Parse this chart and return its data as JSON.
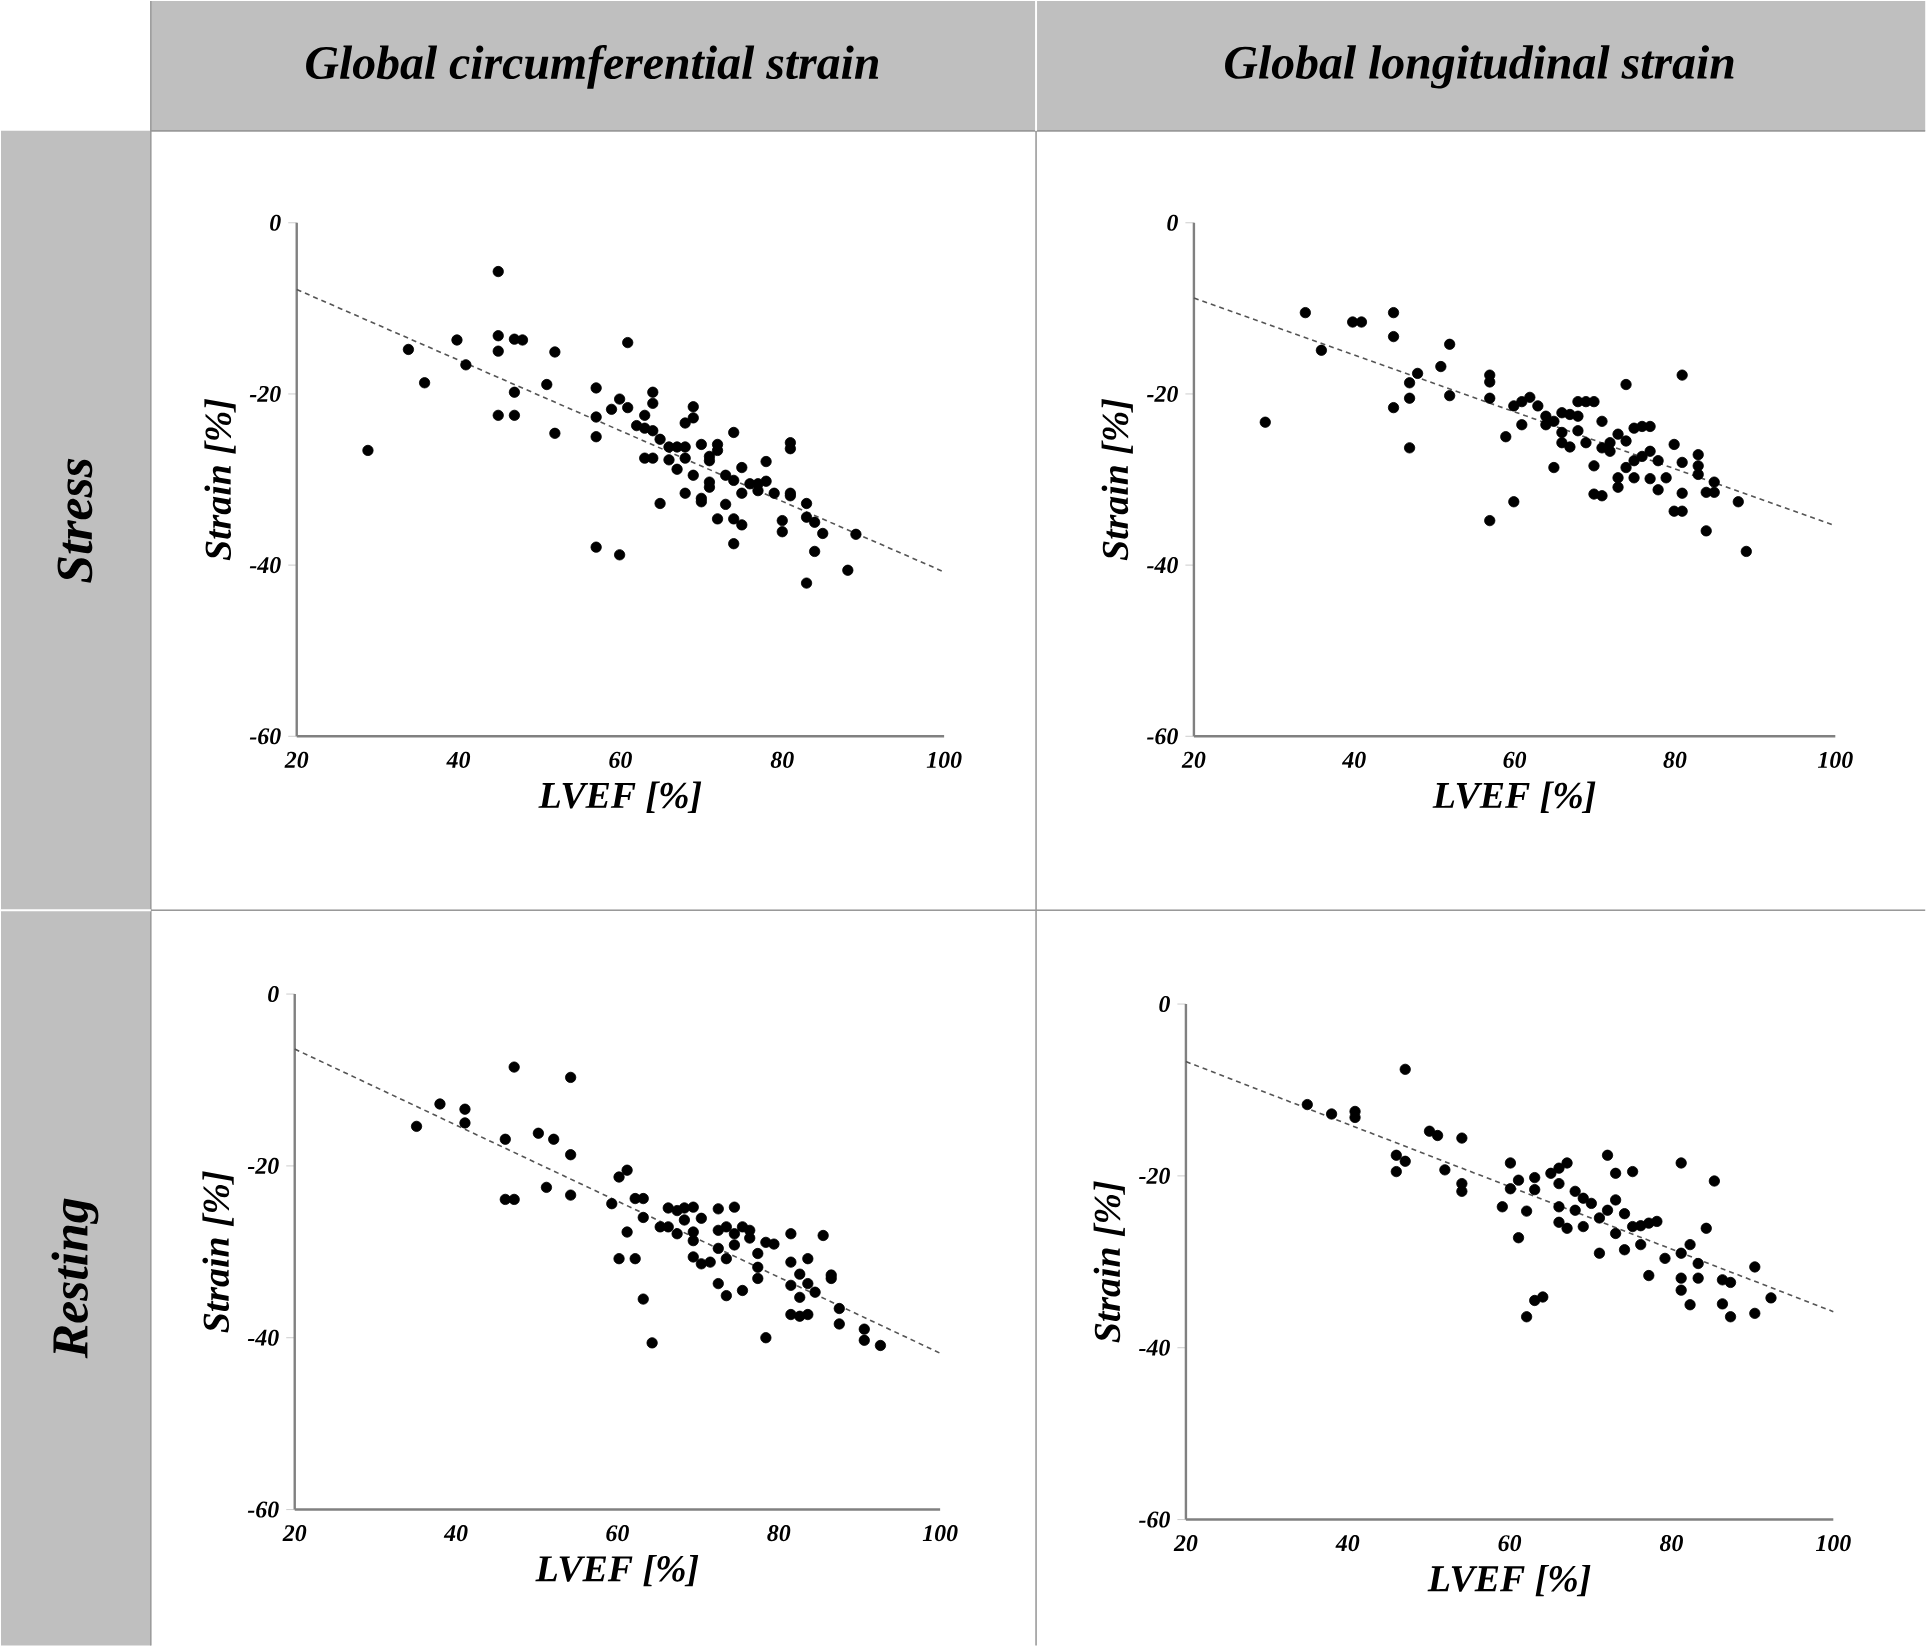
{
  "chart_data": [
    {
      "type": "scatter",
      "title": "Global circumferential strain",
      "annotations": [
        "Stress"
      ],
      "xlabel": "LVEF [%]",
      "ylabel": "Strain [%]",
      "xlim": [
        20,
        100
      ],
      "ylim": [
        -60,
        0
      ],
      "xticks": [
        20,
        40,
        60,
        80,
        100
      ],
      "yticks": [
        -60,
        -40,
        -20,
        0
      ],
      "series": [
        {
          "color": "#000000",
          "marker": "circle",
          "x": [
            28.8,
            33.8,
            35.8,
            39.8,
            40.9,
            44.9,
            44.9,
            44.9,
            44.9,
            46.9,
            47.9,
            46.9,
            46.9,
            50.9,
            51.9,
            51.9,
            57.0,
            57.0,
            57.0,
            57.0,
            59.9,
            59.9,
            58.9,
            60.9,
            60.9,
            62.0,
            63.0,
            64.0,
            64.0,
            63.0,
            64.0,
            64.9,
            63.0,
            64.0,
            64.9,
            66.0,
            67.0,
            68.0,
            66.0,
            67.0,
            68.0,
            68.0,
            69.0,
            69.0,
            69.0,
            68.0,
            70.0,
            70.0,
            70.0,
            71.0,
            71.0,
            72.0,
            72.0,
            71.0,
            71.0,
            72.0,
            73.0,
            73.0,
            74.0,
            74.0,
            74.0,
            74.0,
            75.0,
            75.0,
            75.0,
            76.0,
            77.0,
            77.0,
            78.0,
            78.0,
            79.0,
            81.0,
            81.0,
            81.0,
            81.0,
            80.0,
            80.0,
            83.0,
            83.0,
            83.0,
            84.0,
            84.0,
            85.0,
            88.1,
            89.1
          ],
          "values": [
            -26.6,
            -14.8,
            -18.7,
            -13.7,
            -16.6,
            -5.7,
            -13.2,
            -15.0,
            -22.5,
            -13.6,
            -13.7,
            -19.8,
            -22.5,
            -18.9,
            -15.1,
            -24.6,
            -19.3,
            -22.7,
            -25.0,
            -37.9,
            -20.6,
            -38.8,
            -21.8,
            -14.0,
            -21.6,
            -23.7,
            -22.5,
            -19.8,
            -21.1,
            -24.0,
            -24.3,
            -25.3,
            -27.5,
            -27.5,
            -32.8,
            -26.2,
            -26.2,
            -26.2,
            -27.7,
            -28.8,
            -27.5,
            -23.4,
            -22.8,
            -21.5,
            -29.5,
            -31.6,
            -25.9,
            -32.2,
            -32.6,
            -27.3,
            -27.8,
            -25.9,
            -26.6,
            -30.3,
            -30.9,
            -34.6,
            -29.5,
            -32.9,
            -24.5,
            -30.1,
            -34.6,
            -37.5,
            -28.6,
            -31.6,
            -35.3,
            -30.5,
            -30.5,
            -31.3,
            -27.9,
            -30.2,
            -31.6,
            -25.7,
            -26.4,
            -31.6,
            -31.9,
            -34.8,
            -36.1,
            -32.8,
            -34.4,
            -42.1,
            -35.0,
            -38.4,
            -36.3,
            -40.6,
            -36.4
          ]
        },
        {
          "type": "line",
          "line_style": "dashed",
          "color": "#555555",
          "x": [
            20,
            100
          ],
          "values": [
            -7.8,
            -40.8
          ],
          "marker": "none"
        }
      ]
    },
    {
      "type": "scatter",
      "title": "Global longitudinal strain",
      "xlabel": "LVEF [%]",
      "ylabel": "Strain [%]",
      "xlim": [
        20,
        100
      ],
      "ylim": [
        -60,
        0
      ],
      "xticks": [
        20,
        40,
        60,
        80,
        100
      ],
      "yticks": [
        -60,
        -40,
        -20,
        0
      ],
      "series": [
        {
          "color": "#000000",
          "marker": "circle",
          "x": [
            28.9,
            33.9,
            35.9,
            39.8,
            40.9,
            44.9,
            44.9,
            44.9,
            46.9,
            46.9,
            46.9,
            47.9,
            50.8,
            51.9,
            51.9,
            56.9,
            56.9,
            56.9,
            56.9,
            58.9,
            59.9,
            59.9,
            60.9,
            60.9,
            61.9,
            62.9,
            63.9,
            63.9,
            64.9,
            64.9,
            65.9,
            65.9,
            65.9,
            66.9,
            66.9,
            67.9,
            67.9,
            67.9,
            68.9,
            68.9,
            69.9,
            69.9,
            69.9,
            70.9,
            70.9,
            70.9,
            71.9,
            71.9,
            72.9,
            72.9,
            72.9,
            73.9,
            73.9,
            73.9,
            74.9,
            74.9,
            74.9,
            75.9,
            75.9,
            76.9,
            76.9,
            76.9,
            77.9,
            77.9,
            78.9,
            79.9,
            79.9,
            80.9,
            80.9,
            80.9,
            80.9,
            82.9,
            82.9,
            82.9,
            83.9,
            83.9,
            84.9,
            84.9,
            87.9,
            88.9
          ],
          "values": [
            -23.3,
            -10.5,
            -14.9,
            -11.6,
            -11.6,
            -10.5,
            -13.3,
            -21.6,
            -18.7,
            -20.5,
            -26.3,
            -17.6,
            -16.8,
            -14.2,
            -20.2,
            -17.8,
            -18.6,
            -20.5,
            -34.8,
            -25.0,
            -21.4,
            -32.6,
            -23.6,
            -20.9,
            -20.4,
            -21.4,
            -22.6,
            -23.6,
            -23.2,
            -28.6,
            -22.2,
            -24.5,
            -25.7,
            -22.4,
            -26.2,
            -20.9,
            -22.6,
            -24.3,
            -20.9,
            -25.7,
            -20.9,
            -28.4,
            -31.7,
            -23.2,
            -26.3,
            -31.9,
            -26.7,
            -25.7,
            -24.7,
            -29.8,
            -30.9,
            -18.9,
            -25.5,
            -28.6,
            -24.0,
            -27.8,
            -29.8,
            -23.8,
            -27.3,
            -23.8,
            -26.7,
            -29.9,
            -27.8,
            -31.2,
            -29.8,
            -25.9,
            -33.7,
            -17.8,
            -28.0,
            -31.6,
            -33.7,
            -27.1,
            -28.4,
            -29.4,
            -31.5,
            -36.0,
            -30.3,
            -31.5,
            -32.6,
            -38.4
          ]
        },
        {
          "type": "line",
          "line_style": "dashed",
          "color": "#555555",
          "x": [
            20,
            100
          ],
          "values": [
            -8.8,
            -35.4
          ],
          "marker": "none"
        }
      ]
    },
    {
      "type": "scatter",
      "annotations": [
        "Resting"
      ],
      "xlabel": "LVEF [%]",
      "ylabel": "Strain [%]",
      "xlim": [
        20,
        100
      ],
      "ylim": [
        -60,
        0
      ],
      "xticks": [
        20,
        40,
        60,
        80,
        100
      ],
      "yticks": [
        -60,
        -40,
        -20,
        0
      ],
      "series": [
        {
          "color": "#000000",
          "marker": "circle",
          "x": [
            35.1,
            38.0,
            41.1,
            41.1,
            46.1,
            46.1,
            47.2,
            47.2,
            50.2,
            51.2,
            52.1,
            54.2,
            54.2,
            54.2,
            59.3,
            60.2,
            61.2,
            60.2,
            61.2,
            62.2,
            62.2,
            63.2,
            63.2,
            63.2,
            64.3,
            65.3,
            66.3,
            66.3,
            67.4,
            67.4,
            68.3,
            68.3,
            69.4,
            69.4,
            69.4,
            69.4,
            70.4,
            70.4,
            71.5,
            72.5,
            72.5,
            72.5,
            72.5,
            73.5,
            73.5,
            73.5,
            74.5,
            74.5,
            74.5,
            75.5,
            75.5,
            76.4,
            76.4,
            77.4,
            77.4,
            77.4,
            78.4,
            78.4,
            79.4,
            81.5,
            81.5,
            81.5,
            81.5,
            82.6,
            82.6,
            82.6,
            83.6,
            83.6,
            83.6,
            84.5,
            85.5,
            86.5,
            86.5,
            87.5,
            87.5,
            90.6,
            90.6,
            92.6
          ],
          "values": [
            -15.4,
            -12.8,
            -13.4,
            -15.0,
            -16.9,
            -23.9,
            -23.9,
            -8.5,
            -16.2,
            -22.5,
            -16.9,
            -9.7,
            -18.7,
            -23.4,
            -24.4,
            -21.3,
            -20.5,
            -30.8,
            -27.7,
            -23.8,
            -30.8,
            -23.8,
            -26.0,
            -35.5,
            -40.6,
            -27.1,
            -24.9,
            -27.1,
            -25.2,
            -27.9,
            -24.9,
            -26.3,
            -24.8,
            -27.7,
            -28.7,
            -30.6,
            -26.1,
            -31.4,
            -31.2,
            -25.0,
            -27.5,
            -29.6,
            -33.7,
            -27.1,
            -30.8,
            -35.1,
            -24.8,
            -27.9,
            -29.2,
            -27.1,
            -34.5,
            -27.5,
            -28.4,
            -30.2,
            -31.8,
            -33.1,
            -28.9,
            -40.0,
            -29.1,
            -27.9,
            -31.2,
            -33.9,
            -37.3,
            -32.6,
            -35.3,
            -37.5,
            -30.8,
            -33.7,
            -37.3,
            -34.7,
            -28.1,
            -32.7,
            -33.1,
            -36.6,
            -38.4,
            -39.0,
            -40.3,
            -40.9
          ]
        },
        {
          "type": "line",
          "line_style": "dashed",
          "color": "#555555",
          "x": [
            20,
            100
          ],
          "values": [
            -6.4,
            -41.8
          ],
          "marker": "none"
        }
      ]
    },
    {
      "type": "scatter",
      "xlabel": "LVEF [%]",
      "ylabel": "Strain [%]",
      "xlim": [
        20,
        100
      ],
      "ylim": [
        -60,
        0
      ],
      "xticks": [
        20,
        40,
        60,
        80,
        100
      ],
      "yticks": [
        -60,
        -40,
        -20,
        0
      ],
      "series": [
        {
          "color": "#000000",
          "marker": "circle",
          "x": [
            35.0,
            38.0,
            40.9,
            40.9,
            47.1,
            46.0,
            46.0,
            47.1,
            50.1,
            51.1,
            52.0,
            54.1,
            54.1,
            54.1,
            59.1,
            60.1,
            60.1,
            61.1,
            61.1,
            62.1,
            62.1,
            63.1,
            63.1,
            63.1,
            64.1,
            65.1,
            66.1,
            66.1,
            66.1,
            66.1,
            67.1,
            67.1,
            68.1,
            68.1,
            69.1,
            69.1,
            70.1,
            71.1,
            71.1,
            72.1,
            72.1,
            73.1,
            73.1,
            73.1,
            74.2,
            74.2,
            75.2,
            75.2,
            76.2,
            76.2,
            77.2,
            77.2,
            78.2,
            79.2,
            81.2,
            81.2,
            81.2,
            81.2,
            82.3,
            82.3,
            83.3,
            83.3,
            84.3,
            85.3,
            86.3,
            86.3,
            87.3,
            87.3,
            90.3,
            90.3,
            92.3
          ],
          "values": [
            -11.7,
            -12.8,
            -12.5,
            -13.2,
            -7.6,
            -17.6,
            -19.5,
            -18.3,
            -14.8,
            -15.3,
            -19.3,
            -15.6,
            -20.9,
            -21.8,
            -23.6,
            -18.5,
            -21.5,
            -20.5,
            -27.2,
            -24.1,
            -36.4,
            -20.2,
            -21.6,
            -34.5,
            -34.1,
            -19.7,
            -19.1,
            -20.9,
            -23.6,
            -25.4,
            -18.5,
            -26.1,
            -21.8,
            -24.0,
            -22.6,
            -25.9,
            -23.2,
            -24.9,
            -29.0,
            -17.6,
            -24.0,
            -19.7,
            -22.8,
            -26.7,
            -24.4,
            -28.6,
            -19.5,
            -25.9,
            -28.0,
            -25.8,
            -25.5,
            -31.6,
            -25.3,
            -29.6,
            -18.5,
            -29.0,
            -31.9,
            -33.3,
            -28.0,
            -35.0,
            -30.2,
            -31.9,
            -26.1,
            -20.6,
            -32.1,
            -34.9,
            -32.4,
            -36.4,
            -30.6,
            -36.0,
            -34.2
          ]
        },
        {
          "type": "line",
          "line_style": "dashed",
          "color": "#555555",
          "x": [
            20,
            100
          ],
          "values": [
            -6.7,
            -35.8
          ],
          "marker": "none"
        }
      ]
    }
  ]
}
